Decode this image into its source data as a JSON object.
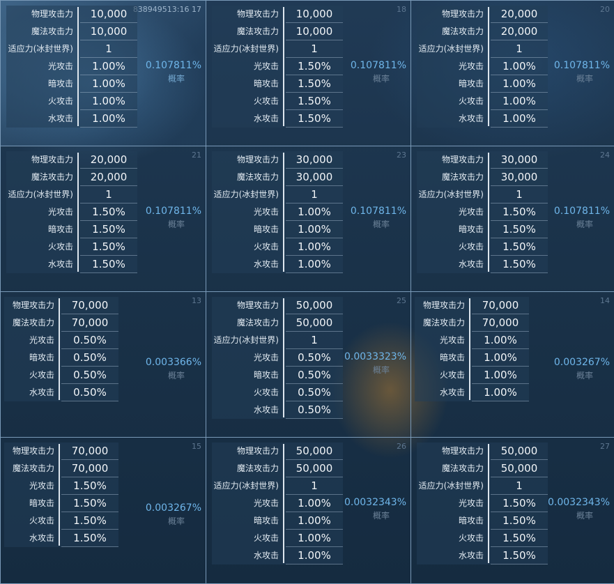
{
  "probability_label": "概率",
  "cells": [
    {
      "id": "838949513:16 17",
      "probability": "0.107811%",
      "highlight": true,
      "rows": [
        [
          "物理攻击力",
          "10,000"
        ],
        [
          "魔法攻击力",
          "10,000"
        ],
        [
          "适应力(冰封世界)",
          "1"
        ],
        [
          "光攻击",
          "1.00%"
        ],
        [
          "暗攻击",
          "1.00%"
        ],
        [
          "火攻击",
          "1.00%"
        ],
        [
          "水攻击",
          "1.00%"
        ]
      ]
    },
    {
      "id": "18",
      "probability": "0.107811%",
      "rows": [
        [
          "物理攻击力",
          "10,000"
        ],
        [
          "魔法攻击力",
          "10,000"
        ],
        [
          "适应力(冰封世界)",
          "1"
        ],
        [
          "光攻击",
          "1.50%"
        ],
        [
          "暗攻击",
          "1.50%"
        ],
        [
          "火攻击",
          "1.50%"
        ],
        [
          "水攻击",
          "1.50%"
        ]
      ]
    },
    {
      "id": "20",
      "probability": "0.107811%",
      "rows": [
        [
          "物理攻击力",
          "20,000"
        ],
        [
          "魔法攻击力",
          "20,000"
        ],
        [
          "适应力(冰封世界)",
          "1"
        ],
        [
          "光攻击",
          "1.00%"
        ],
        [
          "暗攻击",
          "1.00%"
        ],
        [
          "火攻击",
          "1.00%"
        ],
        [
          "水攻击",
          "1.00%"
        ]
      ]
    },
    {
      "id": "21",
      "probability": "0.107811%",
      "rows": [
        [
          "物理攻击力",
          "20,000"
        ],
        [
          "魔法攻击力",
          "20,000"
        ],
        [
          "适应力(冰封世界)",
          "1"
        ],
        [
          "光攻击",
          "1.50%"
        ],
        [
          "暗攻击",
          "1.50%"
        ],
        [
          "火攻击",
          "1.50%"
        ],
        [
          "水攻击",
          "1.50%"
        ]
      ]
    },
    {
      "id": "23",
      "probability": "0.107811%",
      "rows": [
        [
          "物理攻击力",
          "30,000"
        ],
        [
          "魔法攻击力",
          "30,000"
        ],
        [
          "适应力(冰封世界)",
          "1"
        ],
        [
          "光攻击",
          "1.00%"
        ],
        [
          "暗攻击",
          "1.00%"
        ],
        [
          "火攻击",
          "1.00%"
        ],
        [
          "水攻击",
          "1.00%"
        ]
      ]
    },
    {
      "id": "24",
      "probability": "0.107811%",
      "rows": [
        [
          "物理攻击力",
          "30,000"
        ],
        [
          "魔法攻击力",
          "30,000"
        ],
        [
          "适应力(冰封世界)",
          "1"
        ],
        [
          "光攻击",
          "1.50%"
        ],
        [
          "暗攻击",
          "1.50%"
        ],
        [
          "火攻击",
          "1.50%"
        ],
        [
          "水攻击",
          "1.50%"
        ]
      ]
    },
    {
      "id": "13",
      "probability": "0.003366%",
      "rows": [
        [
          "物理攻击力",
          "70,000"
        ],
        [
          "魔法攻击力",
          "70,000"
        ],
        [
          "光攻击",
          "0.50%"
        ],
        [
          "暗攻击",
          "0.50%"
        ],
        [
          "火攻击",
          "0.50%"
        ],
        [
          "水攻击",
          "0.50%"
        ]
      ]
    },
    {
      "id": "25",
      "probability": "0.0033323%",
      "rows": [
        [
          "物理攻击力",
          "50,000"
        ],
        [
          "魔法攻击力",
          "50,000"
        ],
        [
          "适应力(冰封世界)",
          "1"
        ],
        [
          "光攻击",
          "0.50%"
        ],
        [
          "暗攻击",
          "0.50%"
        ],
        [
          "火攻击",
          "0.50%"
        ],
        [
          "水攻击",
          "0.50%"
        ]
      ]
    },
    {
      "id": "14",
      "probability": "0.003267%",
      "rows": [
        [
          "物理攻击力",
          "70,000"
        ],
        [
          "魔法攻击力",
          "70,000"
        ],
        [
          "光攻击",
          "1.00%"
        ],
        [
          "暗攻击",
          "1.00%"
        ],
        [
          "火攻击",
          "1.00%"
        ],
        [
          "水攻击",
          "1.00%"
        ]
      ]
    },
    {
      "id": "15",
      "probability": "0.003267%",
      "rows": [
        [
          "物理攻击力",
          "70,000"
        ],
        [
          "魔法攻击力",
          "70,000"
        ],
        [
          "光攻击",
          "1.50%"
        ],
        [
          "暗攻击",
          "1.50%"
        ],
        [
          "火攻击",
          "1.50%"
        ],
        [
          "水攻击",
          "1.50%"
        ]
      ]
    },
    {
      "id": "26",
      "probability": "0.0032343%",
      "rows": [
        [
          "物理攻击力",
          "50,000"
        ],
        [
          "魔法攻击力",
          "50,000"
        ],
        [
          "适应力(冰封世界)",
          "1"
        ],
        [
          "光攻击",
          "1.00%"
        ],
        [
          "暗攻击",
          "1.00%"
        ],
        [
          "火攻击",
          "1.00%"
        ],
        [
          "水攻击",
          "1.00%"
        ]
      ]
    },
    {
      "id": "27",
      "probability": "0.0032343%",
      "rows": [
        [
          "物理攻击力",
          "50,000"
        ],
        [
          "魔法攻击力",
          "50,000"
        ],
        [
          "适应力(冰封世界)",
          "1"
        ],
        [
          "光攻击",
          "1.50%"
        ],
        [
          "暗攻击",
          "1.50%"
        ],
        [
          "火攻击",
          "1.50%"
        ],
        [
          "水攻击",
          "1.50%"
        ]
      ]
    }
  ]
}
